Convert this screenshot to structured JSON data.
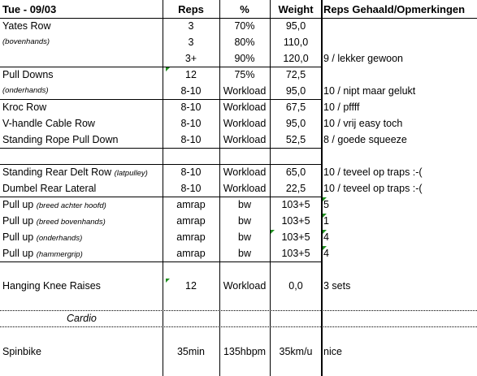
{
  "header": {
    "title": "Tue - 09/03",
    "reps": "Reps",
    "percent": "%",
    "weight": "Weight",
    "notes": "Reps Gehaald/Opmerkingen"
  },
  "rows": [
    {
      "name": "Yates Row",
      "reps": "3",
      "pct": "70%",
      "weight": "95,0",
      "note": ""
    },
    {
      "name": "(bovenhands)",
      "reps": "3",
      "pct": "80%",
      "weight": "110,0",
      "note": ""
    },
    {
      "name": "",
      "reps": "3+",
      "pct": "90%",
      "weight": "120,0",
      "note": "9 / lekker gewoon"
    },
    {
      "name": "Pull Downs",
      "reps": "12",
      "pct": "75%",
      "weight": "72,5",
      "note": ""
    },
    {
      "name": "(onderhands)",
      "reps": "8-10",
      "pct": "Workload",
      "weight": "95,0",
      "note": "10 / nipt maar gelukt"
    },
    {
      "name": "Kroc Row",
      "reps": "8-10",
      "pct": "Workload",
      "weight": "67,5",
      "note": "10 / pffff"
    },
    {
      "name": "V-handle Cable Row",
      "reps": "8-10",
      "pct": "Workload",
      "weight": "95,0",
      "note": "10 / vrij easy toch"
    },
    {
      "name": "Standing Rope Pull Down",
      "reps": "8-10",
      "pct": "Workload",
      "weight": "52,5",
      "note": "8 / goede squeeze"
    },
    {
      "name": "",
      "reps": "",
      "pct": "",
      "weight": "",
      "note": ""
    },
    {
      "name": "Standing Rear Delt Row",
      "sub": "(latpulley)",
      "reps": "8-10",
      "pct": "Workload",
      "weight": "65,0",
      "note": "10 / teveel op traps :-("
    },
    {
      "name": "Dumbel Rear Lateral",
      "reps": "8-10",
      "pct": "Workload",
      "weight": "22,5",
      "note": "10 / teveel op traps :-("
    },
    {
      "name": "Pull up",
      "sub": "(breed achter hoofd)",
      "reps": "amrap",
      "pct": "bw",
      "weight": "103+5",
      "note": "5"
    },
    {
      "name": "Pull up",
      "sub": "(breed bovenhands)",
      "reps": "amrap",
      "pct": "bw",
      "weight": "103+5",
      "note": "1"
    },
    {
      "name": "Pull up",
      "sub": "(onderhands)",
      "reps": "amrap",
      "pct": "bw",
      "weight": "103+5",
      "note": "4"
    },
    {
      "name": "Pull up",
      "sub": "(hammergrip)",
      "reps": "amrap",
      "pct": "bw",
      "weight": "103+5",
      "note": "4"
    },
    {
      "name": "",
      "reps": "",
      "pct": "",
      "weight": "",
      "note": ""
    },
    {
      "name": "Hanging Knee Raises",
      "reps": "12",
      "pct": "Workload",
      "weight": "0,0",
      "note": "3 sets"
    },
    {
      "name": "",
      "reps": "",
      "pct": "",
      "weight": "",
      "note": ""
    },
    {
      "name": "Cardio",
      "reps": "",
      "pct": "",
      "weight": "",
      "note": ""
    },
    {
      "name": "",
      "reps": "",
      "pct": "",
      "weight": "",
      "note": ""
    },
    {
      "name": "Spinbike",
      "reps": "35min",
      "pct": "135hbpm",
      "weight": "35km/u",
      "note": "nice"
    }
  ]
}
